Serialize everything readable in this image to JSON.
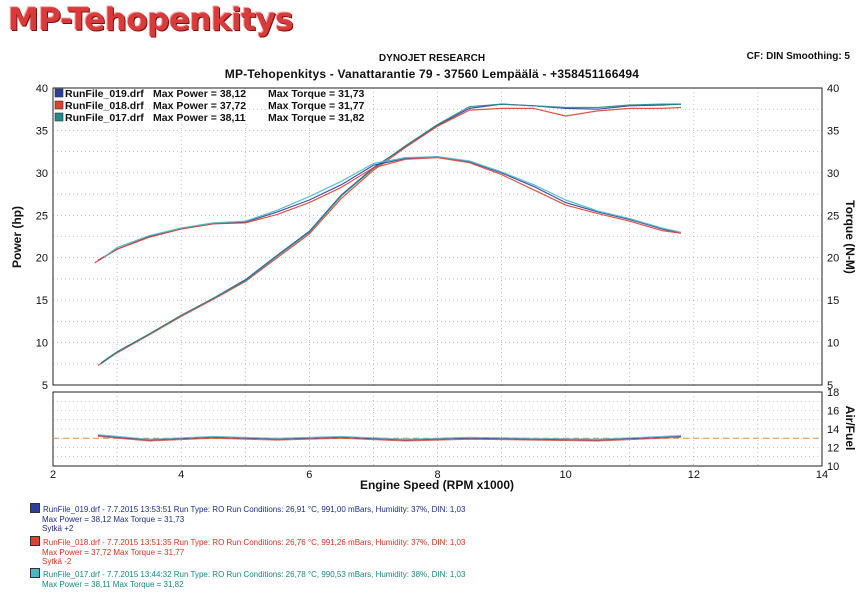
{
  "logo_text": "MP-Tehopenkitys",
  "header": {
    "company": "DYNOJET RESEARCH",
    "title": "MP-Tehopenkitys - Vanattarantie 79 - 37560 Lempäälä - +358451166494",
    "cf": "CF: DIN  Smoothing: 5"
  },
  "legend": [
    {
      "file": "RunFile_019.drf",
      "power": "Max Power = 38,12",
      "torque": "Max Torque = 31,73",
      "color": "#2b3f9e"
    },
    {
      "file": "RunFile_018.drf",
      "power": "Max Power = 37,72",
      "torque": "Max Torque = 31,77",
      "color": "#e0412f"
    },
    {
      "file": "RunFile_017.drf",
      "power": "Max Power = 38,11",
      "torque": "Max Torque = 31,82",
      "color": "#1f8c8a"
    }
  ],
  "footer": [
    {
      "l1": "RunFile_019.drf - 7.7.2015 13:53:51  Run Type: RO  Run Conditions: 26,91 °C, 991,00 mBars,  Humidity:  37%, DIN: 1,03",
      "l2": "Max Power = 38,12  Max Torque = 31,73",
      "l3": "Sytkä +2",
      "color": "#2b3f9e",
      "text_color": "#1c2f8c"
    },
    {
      "l1": "RunFile_018.drf - 7.7.2015 13:51:35  Run Type: RO  Run Conditions: 26,76 °C, 991,26 mBars,  Humidity:  37%, DIN: 1,03",
      "l2": "Max Power = 37,72  Max Torque = 31,77",
      "l3": "Sytkä -2",
      "color": "#e0412f",
      "text_color": "#d8321e"
    },
    {
      "l1": "RunFile_017.drf - 7.7.2015 13:44:32  Run Type: RO  Run Conditions: 26,78 °C, 990,53 mBars,  Humidity:  38%, DIN: 1,03",
      "l2": "Max Power = 38,11  Max Torque = 31,82",
      "l3": "",
      "color": "#47b8c8",
      "text_color": "#168a80"
    }
  ],
  "chart_data": [
    {
      "type": "line",
      "xlabel": "Engine Speed (RPM x1000)",
      "ylabel": "Power (hp)",
      "y2label": "Torque (N-M)",
      "xlim": [
        2,
        14
      ],
      "ylim": [
        5,
        40
      ],
      "y2lim": [
        5,
        40
      ],
      "x_ticks": [
        2,
        4,
        6,
        8,
        10,
        12,
        14
      ],
      "y_ticks": [
        5,
        10,
        15,
        20,
        25,
        30,
        35,
        40
      ],
      "grid": true,
      "legend_position": "top-left",
      "series": [
        {
          "name": "RunFile_019.drf",
          "quantity": "power",
          "color": "#2b3f9e",
          "points": [
            [
              2.75,
              7.6
            ],
            [
              3.0,
              8.9
            ],
            [
              3.5,
              11.0
            ],
            [
              4.0,
              13.2
            ],
            [
              4.5,
              15.2
            ],
            [
              5.0,
              17.4
            ],
            [
              5.5,
              20.3
            ],
            [
              6.0,
              23.1
            ],
            [
              6.5,
              27.4
            ],
            [
              7.0,
              30.6
            ],
            [
              7.5,
              33.1
            ],
            [
              8.0,
              35.6
            ],
            [
              8.5,
              37.6
            ],
            [
              9.0,
              38.1
            ],
            [
              9.5,
              37.9
            ],
            [
              10.0,
              37.6
            ],
            [
              10.5,
              37.5
            ],
            [
              11.0,
              37.9
            ],
            [
              11.5,
              38.0
            ],
            [
              11.8,
              38.1
            ]
          ]
        },
        {
          "name": "RunFile_018.drf",
          "quantity": "power",
          "color": "#e0412f",
          "points": [
            [
              2.7,
              7.3
            ],
            [
              3.0,
              8.8
            ],
            [
              3.5,
              10.9
            ],
            [
              4.0,
              13.1
            ],
            [
              4.5,
              15.1
            ],
            [
              5.0,
              17.2
            ],
            [
              5.5,
              20.0
            ],
            [
              6.0,
              22.8
            ],
            [
              6.5,
              27.0
            ],
            [
              7.0,
              30.3
            ],
            [
              7.5,
              33.0
            ],
            [
              8.0,
              35.5
            ],
            [
              8.5,
              37.4
            ],
            [
              9.0,
              37.6
            ],
            [
              9.5,
              37.6
            ],
            [
              10.0,
              36.7
            ],
            [
              10.5,
              37.3
            ],
            [
              11.0,
              37.6
            ],
            [
              11.5,
              37.6
            ],
            [
              11.8,
              37.7
            ]
          ]
        },
        {
          "name": "RunFile_017.drf",
          "quantity": "power",
          "color": "#1f8c8a",
          "points": [
            [
              2.75,
              7.5
            ],
            [
              3.0,
              8.9
            ],
            [
              3.5,
              11.0
            ],
            [
              4.0,
              13.2
            ],
            [
              4.5,
              15.2
            ],
            [
              5.0,
              17.3
            ],
            [
              5.5,
              20.2
            ],
            [
              6.0,
              23.0
            ],
            [
              6.5,
              27.3
            ],
            [
              7.0,
              30.5
            ],
            [
              7.5,
              33.2
            ],
            [
              8.0,
              35.7
            ],
            [
              8.5,
              37.8
            ],
            [
              9.0,
              38.1
            ],
            [
              9.5,
              37.9
            ],
            [
              10.0,
              37.7
            ],
            [
              10.5,
              37.7
            ],
            [
              11.0,
              38.0
            ],
            [
              11.5,
              38.1
            ],
            [
              11.8,
              38.1
            ]
          ]
        },
        {
          "name": "RunFile_019.drf",
          "quantity": "torque",
          "color": "#2b3f9e",
          "points": [
            [
              2.7,
              19.7
            ],
            [
              3.0,
              21.0
            ],
            [
              3.5,
              22.5
            ],
            [
              4.0,
              23.4
            ],
            [
              4.5,
              24.0
            ],
            [
              5.0,
              24.2
            ],
            [
              5.5,
              25.4
            ],
            [
              6.0,
              26.8
            ],
            [
              6.5,
              28.6
            ],
            [
              7.0,
              30.9
            ],
            [
              7.5,
              31.7
            ],
            [
              8.0,
              31.9
            ],
            [
              8.5,
              31.3
            ],
            [
              9.0,
              30.0
            ],
            [
              9.5,
              28.4
            ],
            [
              10.0,
              26.5
            ],
            [
              10.5,
              25.4
            ],
            [
              11.0,
              24.5
            ],
            [
              11.5,
              23.4
            ],
            [
              11.8,
              22.9
            ]
          ]
        },
        {
          "name": "RunFile_018.drf",
          "quantity": "torque",
          "color": "#e0412f",
          "points": [
            [
              2.65,
              19.4
            ],
            [
              3.0,
              21.0
            ],
            [
              3.5,
              22.4
            ],
            [
              4.0,
              23.4
            ],
            [
              4.5,
              24.0
            ],
            [
              5.0,
              24.1
            ],
            [
              5.5,
              25.1
            ],
            [
              6.0,
              26.5
            ],
            [
              6.5,
              28.3
            ],
            [
              7.0,
              30.6
            ],
            [
              7.5,
              31.6
            ],
            [
              8.0,
              31.8
            ],
            [
              8.5,
              31.2
            ],
            [
              9.0,
              29.8
            ],
            [
              9.5,
              28.0
            ],
            [
              10.0,
              26.2
            ],
            [
              10.5,
              25.2
            ],
            [
              11.0,
              24.3
            ],
            [
              11.5,
              23.2
            ],
            [
              11.8,
              22.9
            ]
          ]
        },
        {
          "name": "RunFile_017.drf",
          "quantity": "torque",
          "color": "#47b8c8",
          "points": [
            [
              2.8,
              20.1
            ],
            [
              3.0,
              21.2
            ],
            [
              3.5,
              22.6
            ],
            [
              4.0,
              23.5
            ],
            [
              4.5,
              24.1
            ],
            [
              5.0,
              24.3
            ],
            [
              5.5,
              25.6
            ],
            [
              6.0,
              27.2
            ],
            [
              6.5,
              29.0
            ],
            [
              7.0,
              31.1
            ],
            [
              7.5,
              31.8
            ],
            [
              8.0,
              31.9
            ],
            [
              8.5,
              31.4
            ],
            [
              9.0,
              30.1
            ],
            [
              9.5,
              28.6
            ],
            [
              10.0,
              26.8
            ],
            [
              10.5,
              25.5
            ],
            [
              11.0,
              24.6
            ],
            [
              11.5,
              23.5
            ],
            [
              11.8,
              23.0
            ]
          ]
        }
      ]
    },
    {
      "type": "line",
      "ylabel": "Air/Fuel",
      "xlim": [
        2,
        14
      ],
      "ylim": [
        10,
        18
      ],
      "y_ticks": [
        10,
        12,
        14,
        16,
        18
      ],
      "reference_line": 13.0,
      "reference_color": "#e08a3a",
      "series": [
        {
          "name": "RunFile_019.drf",
          "color": "#2b3f9e",
          "points": [
            [
              2.7,
              13.3
            ],
            [
              3.5,
              12.8
            ],
            [
              4.5,
              13.1
            ],
            [
              5.5,
              12.9
            ],
            [
              6.5,
              13.1
            ],
            [
              7.5,
              12.8
            ],
            [
              8.5,
              13.0
            ],
            [
              9.5,
              12.9
            ],
            [
              10.5,
              12.8
            ],
            [
              11.5,
              13.1
            ],
            [
              11.8,
              13.2
            ]
          ]
        },
        {
          "name": "RunFile_018.drf",
          "color": "#e0412f",
          "points": [
            [
              2.7,
              13.2
            ],
            [
              3.5,
              12.7
            ],
            [
              4.5,
              13.0
            ],
            [
              5.5,
              12.8
            ],
            [
              6.5,
              13.0
            ],
            [
              7.5,
              12.7
            ],
            [
              8.5,
              12.9
            ],
            [
              9.5,
              12.8
            ],
            [
              10.5,
              12.7
            ],
            [
              11.5,
              13.0
            ],
            [
              11.8,
              13.1
            ]
          ]
        },
        {
          "name": "RunFile_017.drf",
          "color": "#47b8c8",
          "points": [
            [
              2.7,
              13.4
            ],
            [
              3.5,
              12.9
            ],
            [
              4.5,
              13.2
            ],
            [
              5.5,
              13.0
            ],
            [
              6.5,
              13.2
            ],
            [
              7.5,
              12.9
            ],
            [
              8.5,
              13.1
            ],
            [
              9.5,
              13.0
            ],
            [
              10.5,
              12.9
            ],
            [
              11.5,
              13.2
            ],
            [
              11.8,
              13.3
            ]
          ]
        }
      ]
    }
  ]
}
